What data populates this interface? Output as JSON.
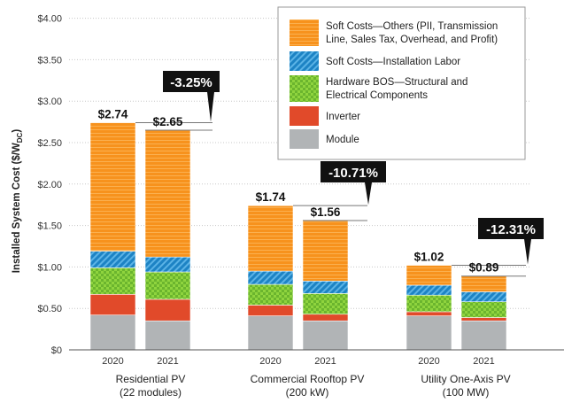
{
  "chart_data": {
    "type": "bar",
    "stacked": true,
    "ylabel": "Installed System Cost ($/W",
    "ylabel_sub": "DC",
    "ylabel_close": ")",
    "yticks": [
      "$0",
      "$0.50",
      "$1.00",
      "$1.50",
      "$2.00",
      "$2.50",
      "$3.00",
      "$3.50",
      "$4.00"
    ],
    "ylim": [
      0,
      4
    ],
    "grid": true,
    "legend_position": "top-right",
    "groups": [
      {
        "name_line1": "Residential PV",
        "name_line2": "(22 modules)",
        "change": "-3.25%"
      },
      {
        "name_line1": "Commercial Rooftop PV",
        "name_line2": "(200 kW)",
        "change": "-10.71%"
      },
      {
        "name_line1": "Utility One-Axis PV",
        "name_line2": "(100 MW)",
        "change": "-12.31%"
      }
    ],
    "bars": [
      {
        "group": 0,
        "year": "2020",
        "total_label": "$2.74",
        "segments": [
          0.42,
          0.25,
          0.32,
          0.2,
          1.55
        ]
      },
      {
        "group": 0,
        "year": "2021",
        "total_label": "$2.65",
        "segments": [
          0.35,
          0.26,
          0.33,
          0.18,
          1.53
        ]
      },
      {
        "group": 1,
        "year": "2020",
        "total_label": "$1.74",
        "segments": [
          0.41,
          0.13,
          0.25,
          0.16,
          0.79
        ]
      },
      {
        "group": 1,
        "year": "2021",
        "total_label": "$1.56",
        "segments": [
          0.35,
          0.08,
          0.25,
          0.15,
          0.73
        ]
      },
      {
        "group": 2,
        "year": "2020",
        "total_label": "$1.02",
        "segments": [
          0.41,
          0.05,
          0.2,
          0.12,
          0.24
        ]
      },
      {
        "group": 2,
        "year": "2021",
        "total_label": "$0.89",
        "segments": [
          0.35,
          0.04,
          0.19,
          0.12,
          0.19
        ]
      }
    ],
    "series": [
      {
        "name": "Module",
        "color": "#b1b4b6",
        "pattern": "plain"
      },
      {
        "name": "Inverter",
        "color": "#e14a2a",
        "pattern": "plain"
      },
      {
        "name": "Hardware BOS—Structural and Electrical Components",
        "name_line1": "Hardware BOS—Structural and",
        "name_line2": "Electrical Components",
        "color": "#6bb52e",
        "pattern": "check",
        "pattern_color": "#8fd43e"
      },
      {
        "name": "Soft Costs—Installation Labor",
        "color": "#1d83c4",
        "pattern": "diag",
        "pattern_color": "#5bb3e6"
      },
      {
        "name": "Soft Costs—Others (PII, Transmission Line, Sales Tax, Overhead, and Profit)",
        "name_line1": "Soft Costs—Others (PII, Transmission",
        "name_line2": "Line, Sales Tax, Overhead, and Profit)",
        "color": "#f7921d",
        "pattern": "hlines",
        "pattern_color": "#fbb04f"
      }
    ]
  }
}
